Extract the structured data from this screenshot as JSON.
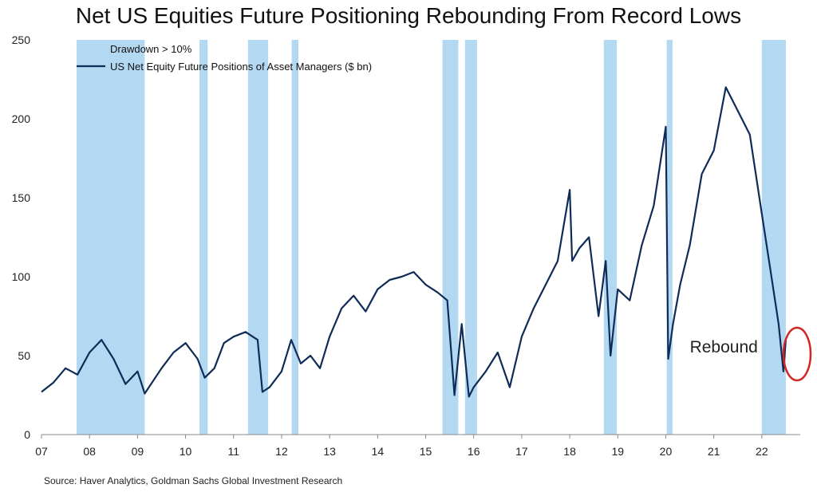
{
  "title": "Net US Equities Future Positioning Rebounding From Record Lows",
  "source": "Source: Haver Analytics, Goldman Sachs Global Investment Research",
  "chart_data": {
    "type": "line",
    "title": "Net US Equities Future Positioning Rebounding From Record Lows",
    "xlabel": "",
    "ylabel": "",
    "xlim": [
      2007.0,
      2022.8
    ],
    "ylim": [
      0,
      250
    ],
    "xticks": [
      2007,
      2008,
      2009,
      2010,
      2011,
      2012,
      2013,
      2014,
      2015,
      2016,
      2017,
      2018,
      2019,
      2020,
      2021,
      2022
    ],
    "xtick_labels": [
      "07",
      "08",
      "09",
      "10",
      "11",
      "12",
      "13",
      "14",
      "15",
      "16",
      "17",
      "18",
      "19",
      "20",
      "21",
      "22"
    ],
    "yticks": [
      0,
      50,
      100,
      150,
      200,
      250
    ],
    "ytick_labels": [
      "0",
      "50",
      "100",
      "150",
      "200",
      "250"
    ],
    "grid": false,
    "legend_position": "top-left",
    "colors": {
      "line": "#0f2b57",
      "drawdown": "#b3d9f2"
    },
    "legend": [
      {
        "label": "Drawdown > 10%",
        "kind": "band"
      },
      {
        "label": "US Net Equity Future Positions of Asset Managers ($ bn)",
        "kind": "line"
      }
    ],
    "drawdowns": [
      [
        2007.73,
        2009.15
      ],
      [
        2010.29,
        2010.46
      ],
      [
        2011.3,
        2011.72
      ],
      [
        2012.21,
        2012.35
      ],
      [
        2015.35,
        2015.68
      ],
      [
        2015.82,
        2016.07
      ],
      [
        2018.71,
        2018.98
      ],
      [
        2020.02,
        2020.14
      ],
      [
        2022.0,
        2022.5
      ]
    ],
    "series": [
      {
        "name": "US Net Equity Future Positions of Asset Managers ($ bn)",
        "x": [
          2007.0,
          2007.25,
          2007.5,
          2007.75,
          2008.0,
          2008.25,
          2008.5,
          2008.75,
          2009.0,
          2009.15,
          2009.5,
          2009.75,
          2010.0,
          2010.25,
          2010.4,
          2010.6,
          2010.8,
          2011.0,
          2011.25,
          2011.5,
          2011.6,
          2011.75,
          2012.0,
          2012.2,
          2012.4,
          2012.6,
          2012.8,
          2013.0,
          2013.25,
          2013.5,
          2013.75,
          2014.0,
          2014.25,
          2014.5,
          2014.75,
          2015.0,
          2015.25,
          2015.45,
          2015.6,
          2015.75,
          2015.9,
          2016.0,
          2016.25,
          2016.5,
          2016.75,
          2017.0,
          2017.25,
          2017.5,
          2017.75,
          2018.0,
          2018.05,
          2018.2,
          2018.4,
          2018.6,
          2018.75,
          2018.85,
          2019.0,
          2019.25,
          2019.5,
          2019.75,
          2020.0,
          2020.05,
          2020.15,
          2020.3,
          2020.5,
          2020.75,
          2021.0,
          2021.25,
          2021.5,
          2021.75,
          2022.0,
          2022.2,
          2022.35,
          2022.45,
          2022.5
        ],
        "y": [
          27,
          33,
          42,
          38,
          52,
          60,
          48,
          32,
          40,
          26,
          42,
          52,
          58,
          48,
          36,
          42,
          58,
          62,
          65,
          60,
          27,
          30,
          40,
          60,
          45,
          50,
          42,
          62,
          80,
          88,
          78,
          92,
          98,
          100,
          103,
          95,
          90,
          85,
          25,
          70,
          24,
          30,
          40,
          52,
          30,
          62,
          80,
          95,
          110,
          155,
          110,
          118,
          125,
          75,
          110,
          50,
          92,
          85,
          120,
          145,
          195,
          48,
          70,
          95,
          120,
          165,
          180,
          220,
          205,
          190,
          140,
          100,
          70,
          40,
          60
        ]
      }
    ],
    "annotations": [
      {
        "text": "Rebound",
        "x": 2020.5,
        "y": 52
      }
    ]
  }
}
